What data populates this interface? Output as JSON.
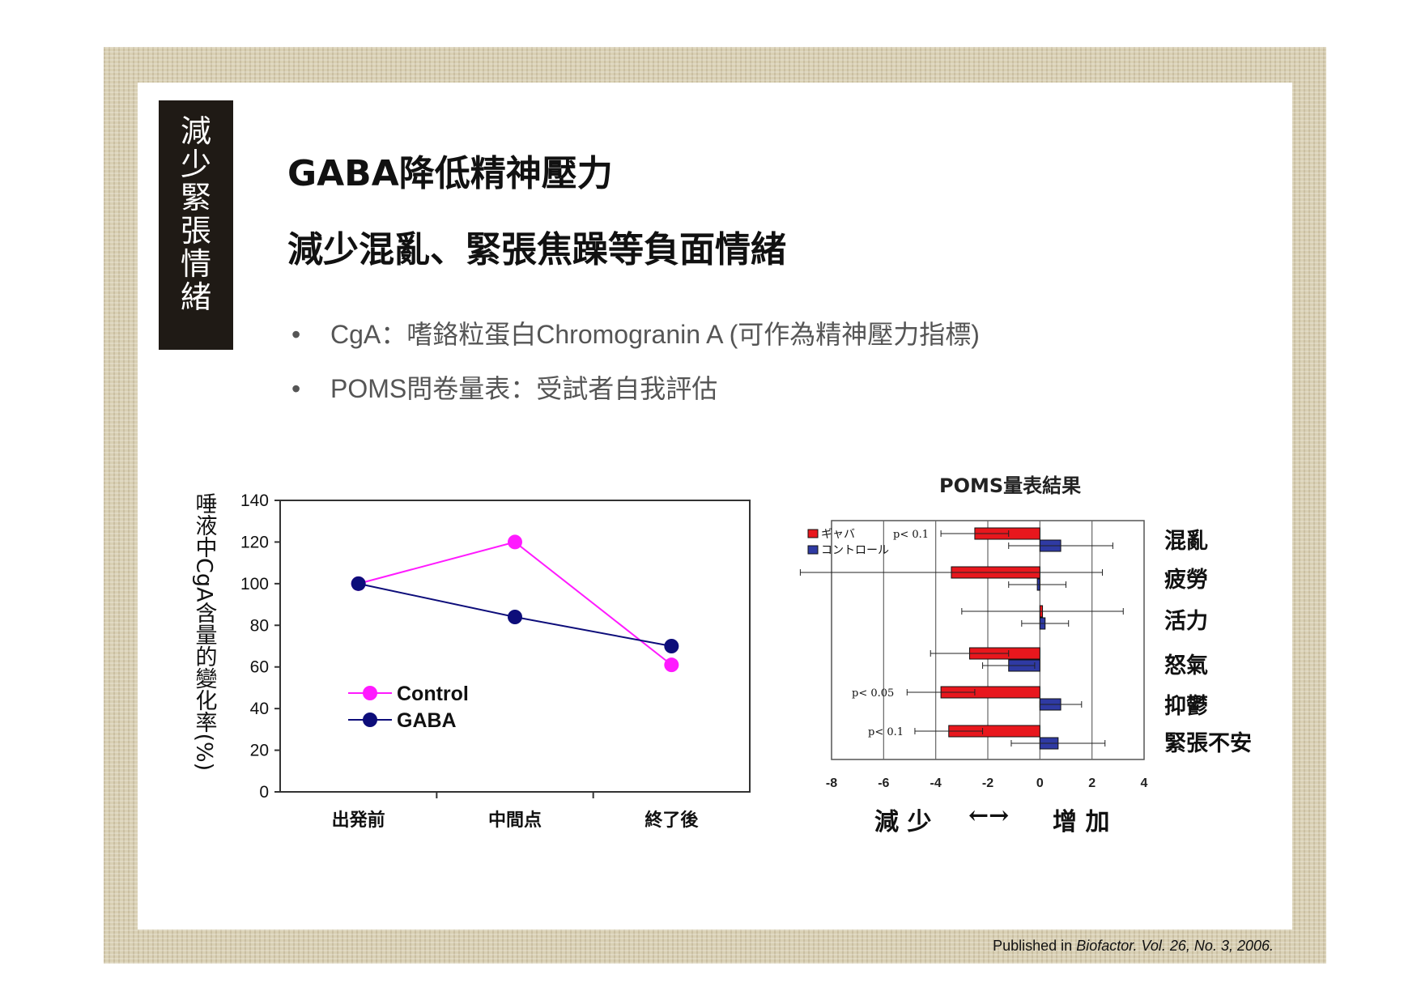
{
  "side_tab": [
    "減",
    "少",
    "緊",
    "張",
    "情",
    "緒"
  ],
  "title_line1": "GABA降低精神壓力",
  "title_line2": "減少混亂、緊張焦躁等負面情緒",
  "bullets": [
    "CgA：嗜鉻粒蛋白Chromogranin A (可作為精神壓力指標)",
    "POMS問卷量表：受試者自我評估"
  ],
  "footer": {
    "prefix": "Published in ",
    "citation": "Biofactor. Vol. 26, No. 3, 2006."
  },
  "colors": {
    "control": "#ff1aff",
    "gaba": "#0d0d7a",
    "red_bar": "#e8171d",
    "blue_bar": "#2f3aa3"
  },
  "chart_data": [
    {
      "type": "line",
      "ylabel": "唾液中CgA含量的變化率(%)",
      "categories": [
        "出発前",
        "中間点",
        "終了後"
      ],
      "ylim": [
        0,
        140
      ],
      "yticks": [
        "0",
        "20",
        "40",
        "60",
        "80",
        "100",
        "120",
        "140"
      ],
      "legend_position": "lower-left",
      "series": [
        {
          "name": "Control",
          "values": [
            100,
            120,
            61
          ]
        },
        {
          "name": "GABA",
          "values": [
            100,
            84,
            70
          ]
        }
      ]
    },
    {
      "type": "bar",
      "orientation": "horizontal",
      "title": "POMS量表結果",
      "categories": [
        "混亂",
        "疲勞",
        "活力",
        "怒氣",
        "抑鬱",
        "緊張不安"
      ],
      "xlim": [
        -8,
        4
      ],
      "xticks": [
        "-8",
        "-6",
        "-4",
        "-2",
        "0",
        "2",
        "4"
      ],
      "legend_position": "top-left",
      "series": [
        {
          "name": "ギャバ",
          "values": [
            -2.5,
            -3.4,
            0.1,
            -2.7,
            -3.8,
            -3.5
          ],
          "errors": [
            1.3,
            5.8,
            3.1,
            1.5,
            1.3,
            1.3
          ]
        },
        {
          "name": "コントロール",
          "values": [
            0.8,
            -0.1,
            0.2,
            -1.2,
            0.8,
            0.7
          ],
          "errors": [
            2.0,
            1.1,
            0.9,
            1.0,
            0.8,
            1.8
          ]
        }
      ],
      "p_values": [
        {
          "text": "p< 0.1",
          "row": 0
        },
        {
          "text": "p< 0.05",
          "row": 4
        },
        {
          "text": "p< 0.1",
          "row": 5
        }
      ],
      "direction_labels": {
        "decrease": "減 少",
        "arrows": "←→",
        "increase": "增 加"
      }
    }
  ]
}
